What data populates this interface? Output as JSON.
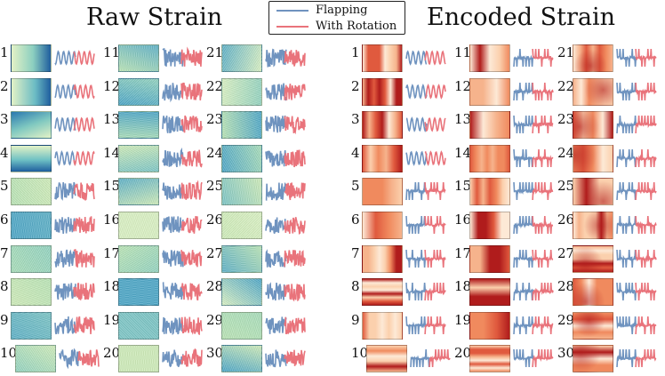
{
  "titles": {
    "raw": "Raw Strain",
    "encoded": "Encoded Strain"
  },
  "legend": {
    "items": [
      {
        "label": "Flapping",
        "color": "#6f93bf"
      },
      {
        "label": "With Rotation",
        "color": "#e9737b"
      }
    ]
  },
  "panels": {
    "raw": {
      "labels": [
        "1",
        "2",
        "3",
        "4",
        "5",
        "6",
        "7",
        "8",
        "9",
        "10",
        "11",
        "12",
        "13",
        "14",
        "15",
        "16",
        "17",
        "18",
        "19",
        "20",
        "21",
        "22",
        "23",
        "24",
        "25",
        "26",
        "27",
        "28",
        "29",
        "30"
      ],
      "style": "raw"
    },
    "encoded": {
      "labels": [
        "1",
        "2",
        "3",
        "4",
        "5",
        "6",
        "7",
        "8",
        "9",
        "10",
        "11",
        "12",
        "13",
        "14",
        "15",
        "16",
        "17",
        "18",
        "19",
        "20",
        "21",
        "22",
        "23",
        "24",
        "25",
        "26",
        "27",
        "28",
        "29",
        "30"
      ],
      "style": "encoded"
    }
  },
  "colors": {
    "flapping": "#6f93bf",
    "rotation": "#e9737b",
    "raw_light": "#e3f2c6",
    "raw_mid": "#7cc4c4",
    "raw_dark": "#1f5e9e",
    "enc_light": "#fde9d6",
    "enc_mid": "#f08a5e",
    "enc_dark": "#b01c1c"
  }
}
